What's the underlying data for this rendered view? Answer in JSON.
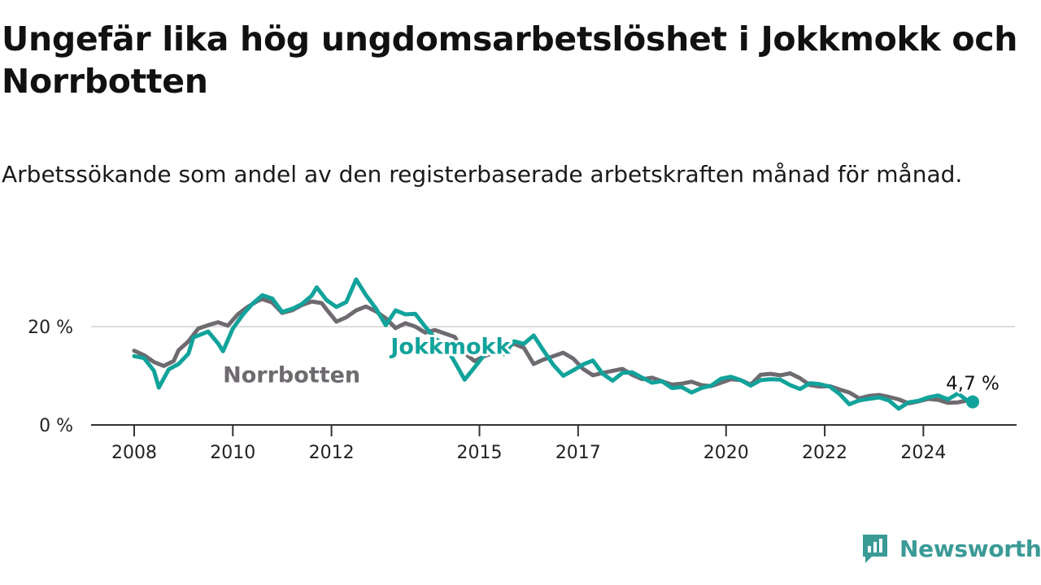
{
  "header": {
    "title": "Ungefär lika hög ungdomsarbetslöshet i Jokkmokk och Norrbotten",
    "subtitle": "Arbetssökande som andel av den registerbaserade arbetskraften månad för månad."
  },
  "brand": {
    "name": "Newsworthy",
    "icon": "newsworthy-logo-icon",
    "color": "#3a9a96"
  },
  "chart_data": {
    "type": "line",
    "title": "Ungefär lika hög ungdomsarbetslöshet i Jokkmokk och Norrbotten",
    "subtitle": "Arbetssökande som andel av den registerbaserade arbetskraften månad för månad.",
    "x_range": [
      2008.0,
      2025.0
    ],
    "ylim": [
      0,
      30
    ],
    "x_ticks": [
      {
        "value": 2008,
        "label": "2008"
      },
      {
        "value": 2010,
        "label": "2010"
      },
      {
        "value": 2012,
        "label": "2012"
      },
      {
        "value": 2015,
        "label": "2015"
      },
      {
        "value": 2017,
        "label": "2017"
      },
      {
        "value": 2020,
        "label": "2020"
      },
      {
        "value": 2022,
        "label": "2022"
      },
      {
        "value": 2024,
        "label": "2024"
      }
    ],
    "y_ticks": [
      {
        "value": 0,
        "label": "0 %"
      },
      {
        "value": 20,
        "label": "20 %"
      }
    ],
    "grid": "horizontal",
    "end_label": "4,7 %",
    "end_value": 4.7,
    "series": [
      {
        "name": "Norrbotten",
        "color": "#6e6a70",
        "label_at": [
          2009.8,
          8.7
        ],
        "points": [
          [
            2008.0,
            15.1
          ],
          [
            2008.2,
            14.2
          ],
          [
            2008.4,
            12.8
          ],
          [
            2008.6,
            12.0
          ],
          [
            2008.8,
            13.0
          ],
          [
            2008.9,
            15.2
          ],
          [
            2009.1,
            17.0
          ],
          [
            2009.3,
            19.6
          ],
          [
            2009.5,
            20.3
          ],
          [
            2009.7,
            20.9
          ],
          [
            2009.9,
            20.2
          ],
          [
            2010.1,
            22.5
          ],
          [
            2010.3,
            24.0
          ],
          [
            2010.5,
            25.2
          ],
          [
            2010.6,
            25.6
          ],
          [
            2010.8,
            24.9
          ],
          [
            2011.0,
            22.8
          ],
          [
            2011.2,
            23.3
          ],
          [
            2011.4,
            24.4
          ],
          [
            2011.6,
            25.1
          ],
          [
            2011.8,
            24.8
          ],
          [
            2011.9,
            23.5
          ],
          [
            2012.1,
            21.0
          ],
          [
            2012.3,
            21.9
          ],
          [
            2012.5,
            23.3
          ],
          [
            2012.7,
            24.1
          ],
          [
            2012.9,
            23.1
          ],
          [
            2013.1,
            21.7
          ],
          [
            2013.3,
            19.7
          ],
          [
            2013.5,
            20.7
          ],
          [
            2013.7,
            20.0
          ],
          [
            2013.9,
            18.8
          ],
          [
            2014.1,
            19.3
          ],
          [
            2014.3,
            18.6
          ],
          [
            2014.5,
            17.9
          ],
          [
            2014.7,
            14.6
          ],
          [
            2014.9,
            13.0
          ],
          [
            2015.1,
            14.0
          ],
          [
            2015.3,
            14.7
          ],
          [
            2015.5,
            15.8
          ],
          [
            2015.7,
            16.5
          ],
          [
            2015.9,
            15.7
          ],
          [
            2016.1,
            12.4
          ],
          [
            2016.3,
            13.3
          ],
          [
            2016.5,
            14.0
          ],
          [
            2016.7,
            14.7
          ],
          [
            2016.9,
            13.5
          ],
          [
            2017.1,
            11.4
          ],
          [
            2017.3,
            10.1
          ],
          [
            2017.5,
            10.6
          ],
          [
            2017.7,
            11.0
          ],
          [
            2017.9,
            11.4
          ],
          [
            2018.1,
            10.2
          ],
          [
            2018.3,
            9.3
          ],
          [
            2018.5,
            9.6
          ],
          [
            2018.7,
            8.9
          ],
          [
            2018.9,
            8.2
          ],
          [
            2019.1,
            8.4
          ],
          [
            2019.3,
            8.8
          ],
          [
            2019.5,
            8.1
          ],
          [
            2019.7,
            7.9
          ],
          [
            2019.9,
            8.6
          ],
          [
            2020.1,
            9.3
          ],
          [
            2020.3,
            9.1
          ],
          [
            2020.5,
            8.2
          ],
          [
            2020.7,
            10.2
          ],
          [
            2020.9,
            10.4
          ],
          [
            2021.1,
            10.1
          ],
          [
            2021.3,
            10.5
          ],
          [
            2021.5,
            9.5
          ],
          [
            2021.7,
            8.1
          ],
          [
            2021.9,
            7.8
          ],
          [
            2022.1,
            7.9
          ],
          [
            2022.3,
            7.2
          ],
          [
            2022.5,
            6.6
          ],
          [
            2022.7,
            5.4
          ],
          [
            2022.9,
            5.9
          ],
          [
            2023.1,
            6.1
          ],
          [
            2023.3,
            5.7
          ],
          [
            2023.5,
            5.2
          ],
          [
            2023.7,
            4.4
          ],
          [
            2023.9,
            4.8
          ],
          [
            2024.1,
            5.3
          ],
          [
            2024.3,
            5.1
          ],
          [
            2024.5,
            4.5
          ],
          [
            2024.7,
            4.6
          ],
          [
            2024.9,
            5.0
          ]
        ]
      },
      {
        "name": "Jokkmokk",
        "color": "#11a39b",
        "label_at": [
          2013.2,
          14.5
        ],
        "points": [
          [
            2008.0,
            14.0
          ],
          [
            2008.2,
            13.6
          ],
          [
            2008.4,
            11.0
          ],
          [
            2008.5,
            7.6
          ],
          [
            2008.7,
            11.3
          ],
          [
            2008.9,
            12.4
          ],
          [
            2009.1,
            14.5
          ],
          [
            2009.2,
            17.8
          ],
          [
            2009.5,
            19.0
          ],
          [
            2009.7,
            16.6
          ],
          [
            2009.8,
            15.0
          ],
          [
            2010.0,
            19.6
          ],
          [
            2010.2,
            22.4
          ],
          [
            2010.4,
            24.7
          ],
          [
            2010.6,
            26.4
          ],
          [
            2010.8,
            25.7
          ],
          [
            2011.0,
            23.0
          ],
          [
            2011.2,
            23.6
          ],
          [
            2011.4,
            24.6
          ],
          [
            2011.6,
            26.3
          ],
          [
            2011.7,
            28.0
          ],
          [
            2011.9,
            25.4
          ],
          [
            2012.1,
            24.0
          ],
          [
            2012.3,
            25.0
          ],
          [
            2012.5,
            29.6
          ],
          [
            2012.7,
            26.4
          ],
          [
            2012.9,
            23.7
          ],
          [
            2013.1,
            20.3
          ],
          [
            2013.3,
            23.3
          ],
          [
            2013.5,
            22.5
          ],
          [
            2013.7,
            22.6
          ],
          [
            2013.9,
            20.0
          ],
          [
            2014.1,
            17.6
          ],
          [
            2014.3,
            16.2
          ],
          [
            2014.5,
            12.8
          ],
          [
            2014.7,
            9.2
          ],
          [
            2014.9,
            11.7
          ],
          [
            2015.1,
            14.3
          ],
          [
            2015.3,
            15.1
          ],
          [
            2015.5,
            14.4
          ],
          [
            2015.7,
            17.0
          ],
          [
            2015.9,
            16.5
          ],
          [
            2016.1,
            18.2
          ],
          [
            2016.3,
            15.1
          ],
          [
            2016.5,
            12.2
          ],
          [
            2016.7,
            10.0
          ],
          [
            2016.9,
            11.1
          ],
          [
            2017.1,
            12.3
          ],
          [
            2017.3,
            13.1
          ],
          [
            2017.5,
            10.4
          ],
          [
            2017.7,
            9.0
          ],
          [
            2017.9,
            10.6
          ],
          [
            2018.1,
            10.7
          ],
          [
            2018.3,
            9.6
          ],
          [
            2018.5,
            8.6
          ],
          [
            2018.7,
            8.9
          ],
          [
            2018.9,
            7.5
          ],
          [
            2019.1,
            7.7
          ],
          [
            2019.3,
            6.6
          ],
          [
            2019.5,
            7.5
          ],
          [
            2019.7,
            8.0
          ],
          [
            2019.9,
            9.4
          ],
          [
            2020.1,
            9.8
          ],
          [
            2020.3,
            9.1
          ],
          [
            2020.5,
            8.0
          ],
          [
            2020.7,
            9.1
          ],
          [
            2020.9,
            9.3
          ],
          [
            2021.1,
            9.2
          ],
          [
            2021.3,
            8.1
          ],
          [
            2021.5,
            7.3
          ],
          [
            2021.7,
            8.5
          ],
          [
            2021.9,
            8.3
          ],
          [
            2022.1,
            7.8
          ],
          [
            2022.3,
            6.3
          ],
          [
            2022.5,
            4.2
          ],
          [
            2022.7,
            5.0
          ],
          [
            2022.9,
            5.3
          ],
          [
            2023.1,
            5.6
          ],
          [
            2023.3,
            5.0
          ],
          [
            2023.5,
            3.3
          ],
          [
            2023.7,
            4.6
          ],
          [
            2023.9,
            4.9
          ],
          [
            2024.1,
            5.6
          ],
          [
            2024.3,
            6.0
          ],
          [
            2024.5,
            5.2
          ],
          [
            2024.7,
            6.4
          ],
          [
            2024.9,
            4.9
          ],
          [
            2025.0,
            4.7
          ]
        ]
      }
    ]
  }
}
